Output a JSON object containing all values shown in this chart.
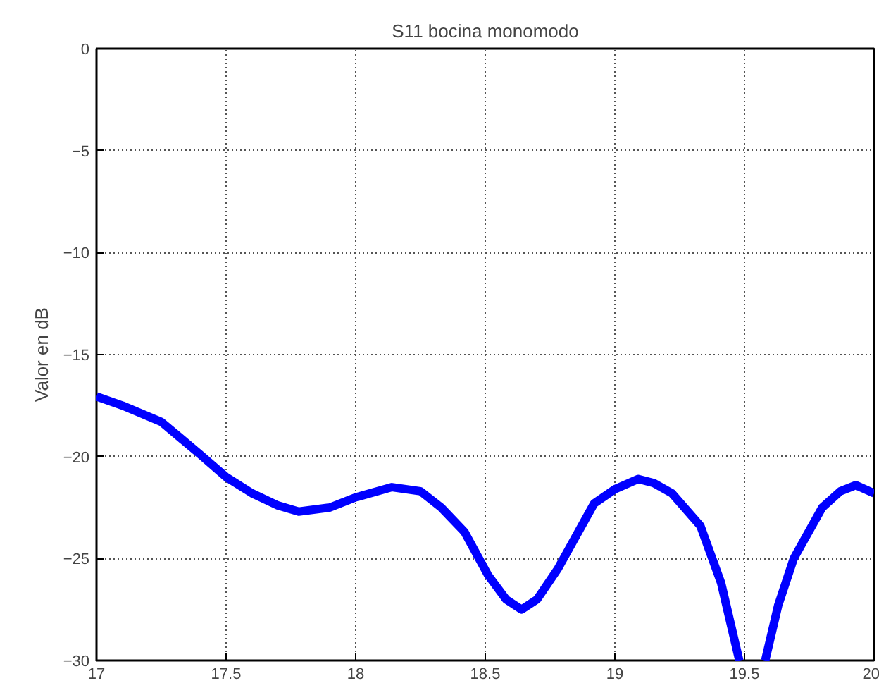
{
  "chart_data": {
    "type": "line",
    "title": "S11 bocina monomodo",
    "ylabel": "Valor en dB",
    "x": [
      17,
      17.1,
      17.25,
      17.4,
      17.5,
      17.6,
      17.7,
      17.78,
      17.9,
      18.0,
      18.14,
      18.25,
      18.33,
      18.42,
      18.51,
      18.58,
      18.64,
      18.7,
      18.78,
      18.85,
      18.92,
      19.0,
      19.09,
      19.15,
      19.22,
      19.33,
      19.41,
      19.48,
      19.53,
      19.58,
      19.63,
      19.69,
      19.8,
      19.87,
      19.93,
      20
    ],
    "series": [
      {
        "color": "#0000ff",
        "values": [
          -17.05,
          -17.5,
          -18.3,
          -19.9,
          -21.0,
          -21.8,
          -22.4,
          -22.7,
          -22.5,
          -22.0,
          -21.5,
          -21.7,
          -22.5,
          -23.7,
          -25.8,
          -27.0,
          -27.5,
          -27.0,
          -25.5,
          -23.9,
          -22.3,
          -21.6,
          -21.1,
          -21.3,
          -21.8,
          -23.4,
          -26.2,
          -30,
          null,
          -30,
          -27.3,
          -25.0,
          -22.5,
          -21.7,
          -21.4,
          -21.8
        ]
      }
    ],
    "xlim": [
      17,
      20
    ],
    "ylim": [
      -30,
      0
    ],
    "xticks": [
      17,
      17.5,
      18,
      18.5,
      19,
      19.5,
      20
    ],
    "yticks": [
      -30,
      -25,
      -20,
      -15,
      -10,
      -5,
      0
    ],
    "grid": true,
    "line_style": "solid",
    "marker": "none"
  }
}
